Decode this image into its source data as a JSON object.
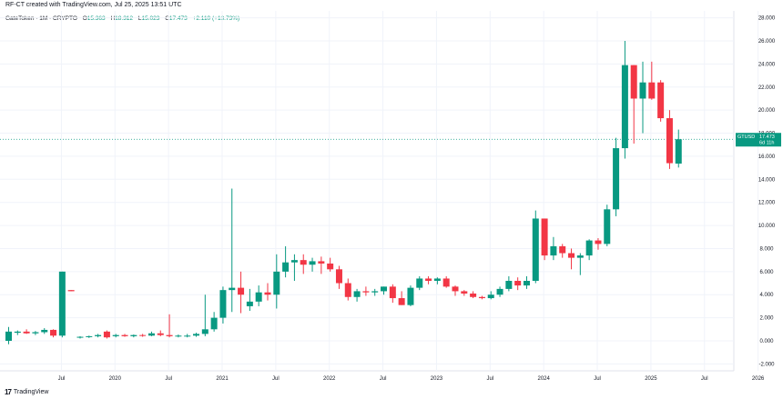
{
  "header": {
    "caption": "RF-CT created with TradingView.com, Jul 25, 2025 13:51 UTC"
  },
  "legend": {
    "symbol": "GateToken · 1M · CRYPTO",
    "open_label": "O",
    "open": "15.363",
    "high_label": "H",
    "high": "18.312",
    "low_label": "L",
    "low": "15.023",
    "close_label": "C",
    "close": "17.473",
    "change": "+2.110 (+13.73%)"
  },
  "price_badge": {
    "ticker": "GTUSD",
    "price": "17.473",
    "countdown": "6d 11h"
  },
  "footer": {
    "brand": "TradingView",
    "logo_mark": "17"
  },
  "colors": {
    "up": "#089981",
    "down": "#f23645",
    "grid": "#f0f3fa",
    "price_line": "#089981"
  },
  "chart_data": {
    "type": "candlestick",
    "ylim": [
      -2.6,
      28.6
    ],
    "y_ticks": [
      "28.000",
      "26.000",
      "24.000",
      "22.000",
      "20.000",
      "18.000",
      "16.000",
      "14.000",
      "12.000",
      "10.000",
      "8.000",
      "6.000",
      "4.000",
      "2.000",
      "0.000",
      "-2.000"
    ],
    "y_tick_values": [
      28,
      26,
      24,
      22,
      20,
      18,
      16,
      14,
      12,
      10,
      8,
      6,
      4,
      2,
      0,
      -2
    ],
    "x_ticks": [
      "Jul",
      "2020",
      "Jul",
      "2021",
      "Jul",
      "2022",
      "Jul",
      "2023",
      "Jul",
      "2024",
      "Jul",
      "2025",
      "Jul",
      "2026"
    ],
    "x_tick_index": [
      3,
      9,
      15,
      21,
      27,
      33,
      39,
      45,
      51,
      57,
      63,
      69,
      75,
      81
    ],
    "last_price": 17.473,
    "first_month": "2019-04",
    "candles": [
      {
        "date": "2019-04",
        "o": 0.0,
        "h": 1.2,
        "l": -0.3,
        "c": 0.8
      },
      {
        "date": "2019-05",
        "o": 0.7,
        "h": 0.9,
        "l": 0.5,
        "c": 0.8
      },
      {
        "date": "2019-06",
        "o": 0.8,
        "h": 1.0,
        "l": 0.6,
        "c": 0.65
      },
      {
        "date": "2019-07",
        "o": 0.65,
        "h": 0.85,
        "l": 0.5,
        "c": 0.75
      },
      {
        "date": "2019-08",
        "o": 0.75,
        "h": 1.1,
        "l": 0.6,
        "c": 0.95
      },
      {
        "date": "2019-09",
        "o": 0.95,
        "h": 1.0,
        "l": 0.3,
        "c": 0.45
      },
      {
        "date": "2019-10",
        "o": 0.45,
        "h": 6.0,
        "l": 0.3,
        "c": 6.0
      },
      {
        "date": "2019-11",
        "o": 4.4,
        "h": 4.4,
        "l": 4.3,
        "c": 4.3
      },
      {
        "date": "2019-12",
        "o": 0.3,
        "h": 0.4,
        "l": 0.2,
        "c": 0.35
      },
      {
        "date": "2020-01",
        "o": 0.35,
        "h": 0.45,
        "l": 0.25,
        "c": 0.4
      },
      {
        "date": "2020-02",
        "o": 0.4,
        "h": 0.6,
        "l": 0.3,
        "c": 0.5
      },
      {
        "date": "2020-03",
        "o": 0.8,
        "h": 0.9,
        "l": 0.2,
        "c": 0.3
      },
      {
        "date": "2020-04",
        "o": 0.4,
        "h": 0.6,
        "l": 0.3,
        "c": 0.5
      },
      {
        "date": "2020-05",
        "o": 0.5,
        "h": 0.6,
        "l": 0.35,
        "c": 0.4
      },
      {
        "date": "2020-06",
        "o": 0.4,
        "h": 0.55,
        "l": 0.3,
        "c": 0.5
      },
      {
        "date": "2020-07",
        "o": 0.5,
        "h": 0.6,
        "l": 0.35,
        "c": 0.45
      },
      {
        "date": "2020-08",
        "o": 0.45,
        "h": 0.8,
        "l": 0.4,
        "c": 0.65
      },
      {
        "date": "2020-09",
        "o": 0.65,
        "h": 0.9,
        "l": 0.4,
        "c": 0.5
      },
      {
        "date": "2020-10",
        "o": 0.5,
        "h": 2.3,
        "l": 0.3,
        "c": 0.4
      },
      {
        "date": "2020-11",
        "o": 0.4,
        "h": 0.55,
        "l": 0.3,
        "c": 0.45
      },
      {
        "date": "2020-12",
        "o": 0.45,
        "h": 0.6,
        "l": 0.3,
        "c": 0.45
      },
      {
        "date": "2021-01",
        "o": 0.45,
        "h": 0.7,
        "l": 0.35,
        "c": 0.6
      },
      {
        "date": "2021-02",
        "o": 0.6,
        "h": 4.0,
        "l": 0.4,
        "c": 1.0
      },
      {
        "date": "2021-03",
        "o": 1.0,
        "h": 2.5,
        "l": 0.8,
        "c": 2.0
      },
      {
        "date": "2021-04",
        "o": 2.0,
        "h": 4.7,
        "l": 1.5,
        "c": 4.4
      },
      {
        "date": "2021-05",
        "o": 4.4,
        "h": 13.2,
        "l": 2.5,
        "c": 4.6
      },
      {
        "date": "2021-06",
        "o": 4.6,
        "h": 6.0,
        "l": 2.4,
        "c": 4.0
      },
      {
        "date": "2021-07",
        "o": 3.0,
        "h": 4.5,
        "l": 2.6,
        "c": 3.4
      },
      {
        "date": "2021-08",
        "o": 3.4,
        "h": 4.8,
        "l": 3.0,
        "c": 4.2
      },
      {
        "date": "2021-09",
        "o": 4.2,
        "h": 5.0,
        "l": 3.5,
        "c": 4.0
      },
      {
        "date": "2021-10",
        "o": 4.0,
        "h": 7.5,
        "l": 2.8,
        "c": 6.0
      },
      {
        "date": "2021-11",
        "o": 6.0,
        "h": 8.2,
        "l": 5.5,
        "c": 6.8
      },
      {
        "date": "2021-12",
        "o": 6.8,
        "h": 7.5,
        "l": 5.2,
        "c": 7.0
      },
      {
        "date": "2022-01",
        "o": 7.0,
        "h": 7.5,
        "l": 5.8,
        "c": 6.6
      },
      {
        "date": "2022-02",
        "o": 6.6,
        "h": 7.2,
        "l": 6.0,
        "c": 6.9
      },
      {
        "date": "2022-03",
        "o": 6.9,
        "h": 7.3,
        "l": 5.8,
        "c": 6.7
      },
      {
        "date": "2022-04",
        "o": 6.7,
        "h": 7.2,
        "l": 6.0,
        "c": 6.2
      },
      {
        "date": "2022-05",
        "o": 6.2,
        "h": 6.5,
        "l": 4.5,
        "c": 5.0
      },
      {
        "date": "2022-06",
        "o": 5.0,
        "h": 5.4,
        "l": 3.5,
        "c": 3.8
      },
      {
        "date": "2022-07",
        "o": 3.8,
        "h": 4.5,
        "l": 3.4,
        "c": 4.3
      },
      {
        "date": "2022-08",
        "o": 4.3,
        "h": 4.7,
        "l": 3.9,
        "c": 4.2
      },
      {
        "date": "2022-09",
        "o": 4.2,
        "h": 4.5,
        "l": 3.9,
        "c": 4.3
      },
      {
        "date": "2022-10",
        "o": 4.3,
        "h": 4.7,
        "l": 4.0,
        "c": 4.7
      },
      {
        "date": "2022-11",
        "o": 4.7,
        "h": 4.9,
        "l": 3.3,
        "c": 3.7
      },
      {
        "date": "2022-12",
        "o": 3.7,
        "h": 4.3,
        "l": 3.1,
        "c": 3.1
      },
      {
        "date": "2023-01",
        "o": 3.1,
        "h": 4.8,
        "l": 3.0,
        "c": 4.6
      },
      {
        "date": "2023-02",
        "o": 4.6,
        "h": 5.6,
        "l": 4.4,
        "c": 5.4
      },
      {
        "date": "2023-03",
        "o": 5.4,
        "h": 5.6,
        "l": 4.9,
        "c": 5.2
      },
      {
        "date": "2023-04",
        "o": 5.2,
        "h": 5.5,
        "l": 4.9,
        "c": 5.4
      },
      {
        "date": "2023-05",
        "o": 5.4,
        "h": 5.6,
        "l": 4.6,
        "c": 4.7
      },
      {
        "date": "2023-06",
        "o": 4.7,
        "h": 4.8,
        "l": 3.9,
        "c": 4.3
      },
      {
        "date": "2023-07",
        "o": 4.3,
        "h": 4.4,
        "l": 3.9,
        "c": 4.1
      },
      {
        "date": "2023-08",
        "o": 4.1,
        "h": 4.3,
        "l": 3.7,
        "c": 3.8
      },
      {
        "date": "2023-09",
        "o": 3.8,
        "h": 3.9,
        "l": 3.6,
        "c": 3.7
      },
      {
        "date": "2023-10",
        "o": 3.7,
        "h": 4.3,
        "l": 3.6,
        "c": 4.0
      },
      {
        "date": "2023-11",
        "o": 4.0,
        "h": 4.7,
        "l": 3.8,
        "c": 4.5
      },
      {
        "date": "2023-12",
        "o": 4.5,
        "h": 5.6,
        "l": 4.3,
        "c": 5.2
      },
      {
        "date": "2024-01",
        "o": 5.2,
        "h": 5.5,
        "l": 4.4,
        "c": 4.8
      },
      {
        "date": "2024-02",
        "o": 4.8,
        "h": 5.6,
        "l": 4.5,
        "c": 5.2
      },
      {
        "date": "2024-03",
        "o": 5.2,
        "h": 11.3,
        "l": 5.0,
        "c": 10.6
      },
      {
        "date": "2024-04",
        "o": 10.6,
        "h": 10.6,
        "l": 7.0,
        "c": 7.4
      },
      {
        "date": "2024-05",
        "o": 7.4,
        "h": 9.0,
        "l": 7.0,
        "c": 8.2
      },
      {
        "date": "2024-06",
        "o": 8.2,
        "h": 8.4,
        "l": 7.2,
        "c": 7.6
      },
      {
        "date": "2024-07",
        "o": 7.6,
        "h": 8.0,
        "l": 6.2,
        "c": 7.2
      },
      {
        "date": "2024-08",
        "o": 7.2,
        "h": 7.6,
        "l": 5.7,
        "c": 7.4
      },
      {
        "date": "2024-09",
        "o": 7.4,
        "h": 8.8,
        "l": 7.0,
        "c": 8.7
      },
      {
        "date": "2024-10",
        "o": 8.7,
        "h": 8.9,
        "l": 7.9,
        "c": 8.4
      },
      {
        "date": "2024-11",
        "o": 8.4,
        "h": 11.8,
        "l": 8.2,
        "c": 11.4
      },
      {
        "date": "2024-12",
        "o": 11.4,
        "h": 17.6,
        "l": 10.8,
        "c": 16.7
      },
      {
        "date": "2025-01",
        "o": 16.7,
        "h": 26.0,
        "l": 15.8,
        "c": 23.9
      },
      {
        "date": "2025-02",
        "o": 23.9,
        "h": 23.9,
        "l": 17.1,
        "c": 21.0
      },
      {
        "date": "2025-03",
        "o": 21.0,
        "h": 24.2,
        "l": 18.0,
        "c": 22.4
      },
      {
        "date": "2025-04",
        "o": 22.4,
        "h": 24.2,
        "l": 20.9,
        "c": 21.0
      },
      {
        "date": "2025-05",
        "o": 22.4,
        "h": 22.6,
        "l": 19.0,
        "c": 19.3
      },
      {
        "date": "2025-06",
        "o": 19.3,
        "h": 20.0,
        "l": 14.9,
        "c": 15.4
      },
      {
        "date": "2025-07",
        "o": 15.363,
        "h": 18.312,
        "l": 15.023,
        "c": 17.473
      }
    ]
  }
}
